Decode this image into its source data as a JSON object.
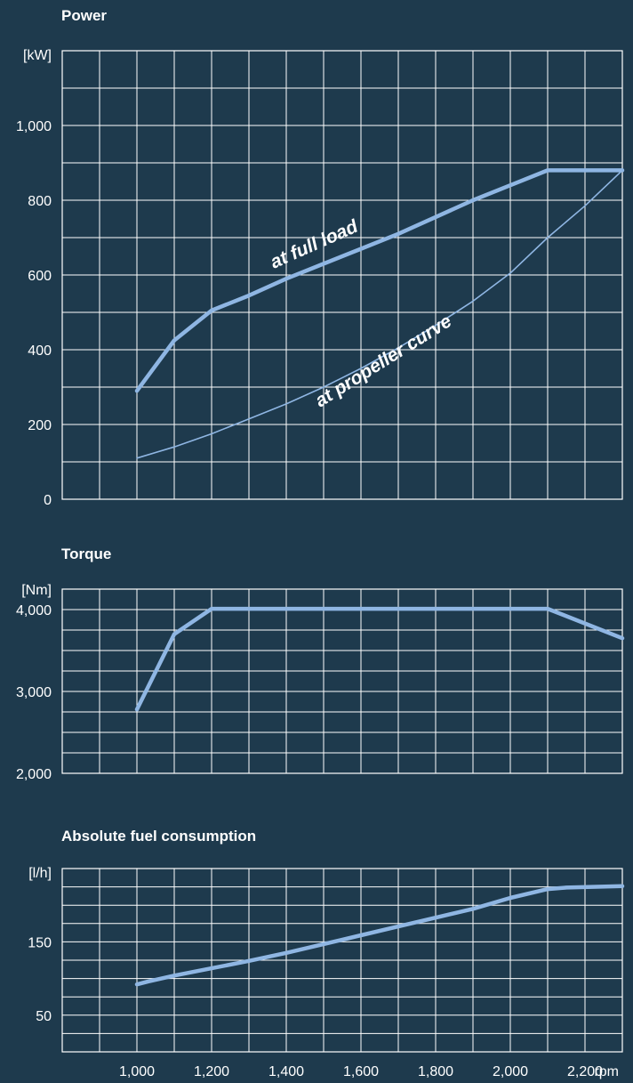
{
  "colors": {
    "background": "#1e3a4d",
    "grid": "#ffffff",
    "curve": "#8fb6e3",
    "text": "#ffffff"
  },
  "x_axis": {
    "ticks": [
      1000,
      1200,
      1400,
      1600,
      1800,
      2000,
      2200
    ],
    "tick_labels": [
      "1,000",
      "1,200",
      "1,400",
      "1,600",
      "1,800",
      "2,000",
      "2,200"
    ],
    "unit": "rpm"
  },
  "chart_data": [
    {
      "type": "line",
      "title": "Power",
      "ylabel": "[kW]",
      "xlim": [
        800,
        2300
      ],
      "ylim": [
        0,
        1200
      ],
      "grid": true,
      "yticks": [
        0,
        200,
        400,
        600,
        800,
        1000
      ],
      "ytick_labels": [
        "0",
        "200",
        "400",
        "600",
        "800",
        "1,000"
      ],
      "series": [
        {
          "name": "at full load",
          "x": [
            1000,
            1100,
            1200,
            1300,
            1400,
            1500,
            1600,
            1700,
            1800,
            1900,
            2000,
            2100,
            2200,
            2300
          ],
          "values": [
            290,
            425,
            505,
            545,
            590,
            630,
            670,
            710,
            755,
            800,
            840,
            880,
            880,
            880
          ]
        },
        {
          "name": "at propeller curve",
          "x": [
            1000,
            1100,
            1200,
            1300,
            1400,
            1500,
            1600,
            1700,
            1800,
            1900,
            2000,
            2100,
            2200,
            2300
          ],
          "values": [
            110,
            140,
            175,
            215,
            255,
            300,
            350,
            405,
            465,
            530,
            605,
            700,
            785,
            880
          ]
        }
      ]
    },
    {
      "type": "line",
      "title": "Torque",
      "ylabel": "[Nm]",
      "xlim": [
        800,
        2300
      ],
      "ylim": [
        2000,
        4250
      ],
      "grid": true,
      "yticks": [
        2000,
        3000,
        4000
      ],
      "ytick_labels": [
        "2,000",
        "3,000",
        "4,000"
      ],
      "series": [
        {
          "x": [
            1000,
            1100,
            1200,
            1300,
            1400,
            1500,
            1600,
            1700,
            1800,
            1900,
            2000,
            2100,
            2200,
            2300
          ],
          "values": [
            2780,
            3700,
            4010,
            4010,
            4010,
            4010,
            4010,
            4010,
            4010,
            4010,
            4010,
            4010,
            3830,
            3650
          ]
        }
      ]
    },
    {
      "type": "line",
      "title": "Absolute fuel consumption",
      "ylabel": "[l/h]",
      "xlim": [
        800,
        2300
      ],
      "ylim": [
        0,
        250
      ],
      "grid": true,
      "yticks": [
        50,
        150
      ],
      "ytick_labels": [
        "50",
        "150"
      ],
      "series": [
        {
          "x": [
            1000,
            1030,
            1100,
            1200,
            1300,
            1400,
            1500,
            1600,
            1700,
            1800,
            1900,
            2000,
            2100,
            2150,
            2300
          ],
          "values": [
            92,
            96,
            104,
            114,
            124,
            135,
            147,
            159,
            171,
            183,
            195,
            210,
            222,
            224,
            226
          ]
        }
      ]
    }
  ]
}
